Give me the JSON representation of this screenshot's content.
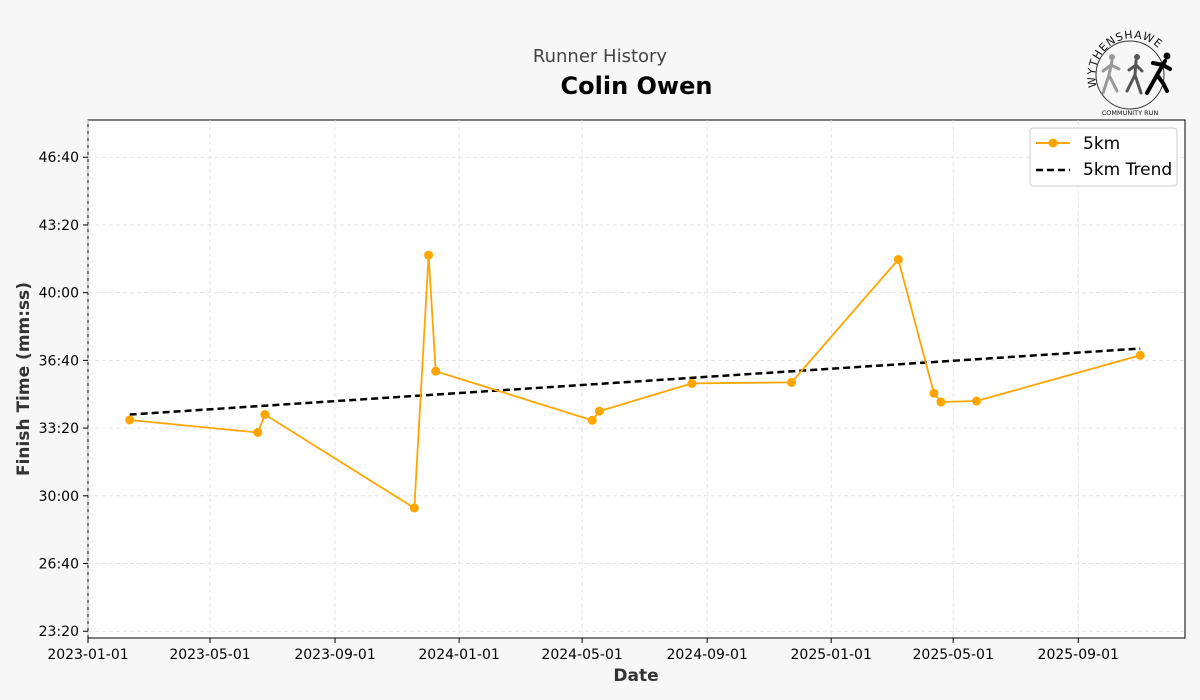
{
  "header": {
    "subtitle": "Runner History",
    "title": "Colin Owen"
  },
  "logo": {
    "arc_text": "WYTHENSHAWE",
    "bottom_text": "COMMUNITY RUN",
    "icon": "runners-logo-icon"
  },
  "colors": {
    "series": "#ffa500",
    "trend": "#000000",
    "grid": "#dddddd",
    "background": "#f7f7f7",
    "plot_background": "#ffffff"
  },
  "chart_data": {
    "type": "line",
    "title": "Colin Owen",
    "subtitle": "Runner History",
    "xlabel": "Date",
    "ylabel": "Finish Time (mm:ss)",
    "xlim": [
      "2023-01-01",
      "2025-12-15"
    ],
    "ylim": [
      "23:00",
      "48:30"
    ],
    "x_ticks": [
      "2023-01-01",
      "2023-05-01",
      "2023-09-01",
      "2024-01-01",
      "2024-05-01",
      "2024-09-01",
      "2025-01-01",
      "2025-05-01",
      "2025-09-01"
    ],
    "y_ticks": [
      "23:20",
      "26:40",
      "30:00",
      "33:20",
      "36:40",
      "40:00",
      "43:20",
      "46:40"
    ],
    "grid": true,
    "legend_position": "top-right",
    "series": [
      {
        "name": "5km",
        "style": "line-with-markers",
        "points": [
          {
            "date": "2023-02-11",
            "time": "33:44"
          },
          {
            "date": "2023-06-17",
            "time": "33:07"
          },
          {
            "date": "2023-06-24",
            "time": "34:00"
          },
          {
            "date": "2023-11-18",
            "time": "29:24"
          },
          {
            "date": "2023-12-02",
            "time": "41:51"
          },
          {
            "date": "2023-12-09",
            "time": "36:08"
          },
          {
            "date": "2024-05-11",
            "time": "33:43"
          },
          {
            "date": "2024-05-18",
            "time": "34:10"
          },
          {
            "date": "2024-08-17",
            "time": "35:32"
          },
          {
            "date": "2024-11-23",
            "time": "35:35"
          },
          {
            "date": "2025-03-08",
            "time": "41:38"
          },
          {
            "date": "2025-04-12",
            "time": "35:03"
          },
          {
            "date": "2025-04-19",
            "time": "34:37"
          },
          {
            "date": "2025-05-24",
            "time": "34:40"
          },
          {
            "date": "2025-11-01",
            "time": "36:55"
          }
        ]
      },
      {
        "name": "5km Trend",
        "style": "dashed-line",
        "points": [
          {
            "date": "2023-02-11",
            "time": "34:00"
          },
          {
            "date": "2025-11-01",
            "time": "37:15"
          }
        ]
      }
    ]
  }
}
